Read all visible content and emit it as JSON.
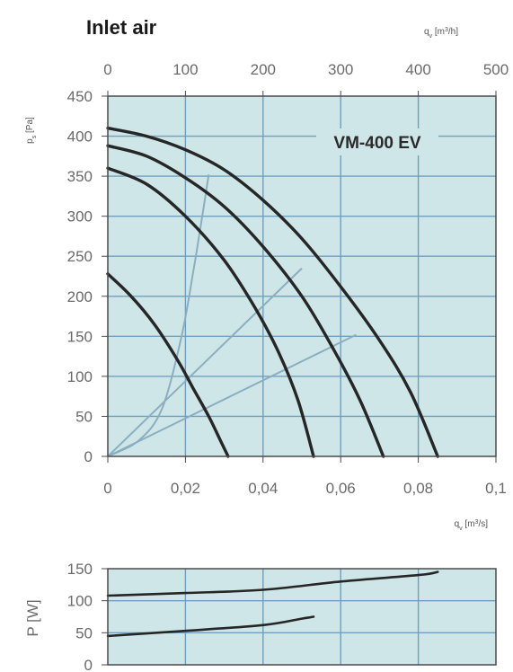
{
  "title": "Inlet air",
  "model_label": "VM-400 EV",
  "colors": {
    "plot_bg": "#cfe6e8",
    "grid": "#6f9fbe",
    "curve": "#262626",
    "system_line": "#8aaec0",
    "frame": "#4a4a4a"
  },
  "chart_data": [
    {
      "type": "line",
      "title": "VM-400 EV",
      "xlabel": "q_v [m³/s]",
      "ylabel": "p_s [Pa]",
      "x2label": "q_v [m³/h]",
      "xlim": [
        0,
        0.1
      ],
      "ylim": [
        0,
        450
      ],
      "x2lim": [
        0,
        500
      ],
      "x_ticks": [
        "0",
        "0,02",
        "0,04",
        "0,06",
        "0,08",
        "0,1"
      ],
      "y_ticks": [
        "0",
        "50",
        "100",
        "150",
        "200",
        "250",
        "300",
        "350",
        "400",
        "450"
      ],
      "x2_ticks": [
        "0",
        "100",
        "200",
        "300",
        "400",
        "500"
      ],
      "grid": true,
      "series": [
        {
          "values": [
            [
              0,
              228
            ],
            [
              0.006,
              200
            ],
            [
              0.012,
              165
            ],
            [
              0.018,
              120
            ],
            [
              0.022,
              85
            ],
            [
              0.026,
              50
            ],
            [
              0.029,
              20
            ],
            [
              0.031,
              0
            ]
          ]
        },
        {
          "values": [
            [
              0,
              360
            ],
            [
              0.01,
              340
            ],
            [
              0.02,
              300
            ],
            [
              0.03,
              245
            ],
            [
              0.038,
              185
            ],
            [
              0.044,
              130
            ],
            [
              0.049,
              70
            ],
            [
              0.053,
              0
            ]
          ]
        },
        {
          "values": [
            [
              0,
              388
            ],
            [
              0.01,
              375
            ],
            [
              0.02,
              348
            ],
            [
              0.03,
              312
            ],
            [
              0.04,
              262
            ],
            [
              0.05,
              200
            ],
            [
              0.058,
              135
            ],
            [
              0.065,
              70
            ],
            [
              0.071,
              0
            ]
          ]
        },
        {
          "values": [
            [
              0,
              410
            ],
            [
              0.01,
              400
            ],
            [
              0.02,
              383
            ],
            [
              0.03,
              358
            ],
            [
              0.04,
              320
            ],
            [
              0.05,
              272
            ],
            [
              0.06,
              212
            ],
            [
              0.07,
              145
            ],
            [
              0.078,
              80
            ],
            [
              0.085,
              0
            ]
          ]
        }
      ],
      "system_curves": [
        {
          "values": [
            [
              0,
              0
            ],
            [
              0.008,
              20
            ],
            [
              0.014,
              60
            ],
            [
              0.019,
              150
            ],
            [
              0.022,
              230
            ],
            [
              0.024,
              290
            ],
            [
              0.026,
              352
            ]
          ]
        },
        {
          "values": [
            [
              0,
              0
            ],
            [
              0.05,
              235
            ]
          ]
        },
        {
          "values": [
            [
              0,
              0
            ],
            [
              0.064,
              152
            ]
          ]
        }
      ]
    },
    {
      "type": "line",
      "ylabel": "P [W]",
      "xlim": [
        0,
        0.1
      ],
      "ylim": [
        0,
        150
      ],
      "y_ticks": [
        "0",
        "50",
        "100",
        "150"
      ],
      "grid": true,
      "series": [
        {
          "values": [
            [
              0,
              108
            ],
            [
              0.02,
              112
            ],
            [
              0.04,
              117
            ],
            [
              0.06,
              130
            ],
            [
              0.08,
              140
            ],
            [
              0.085,
              145
            ]
          ]
        },
        {
          "values": [
            [
              0,
              45
            ],
            [
              0.02,
              53
            ],
            [
              0.04,
              62
            ],
            [
              0.05,
              72
            ],
            [
              0.053,
              75
            ]
          ]
        }
      ]
    }
  ]
}
